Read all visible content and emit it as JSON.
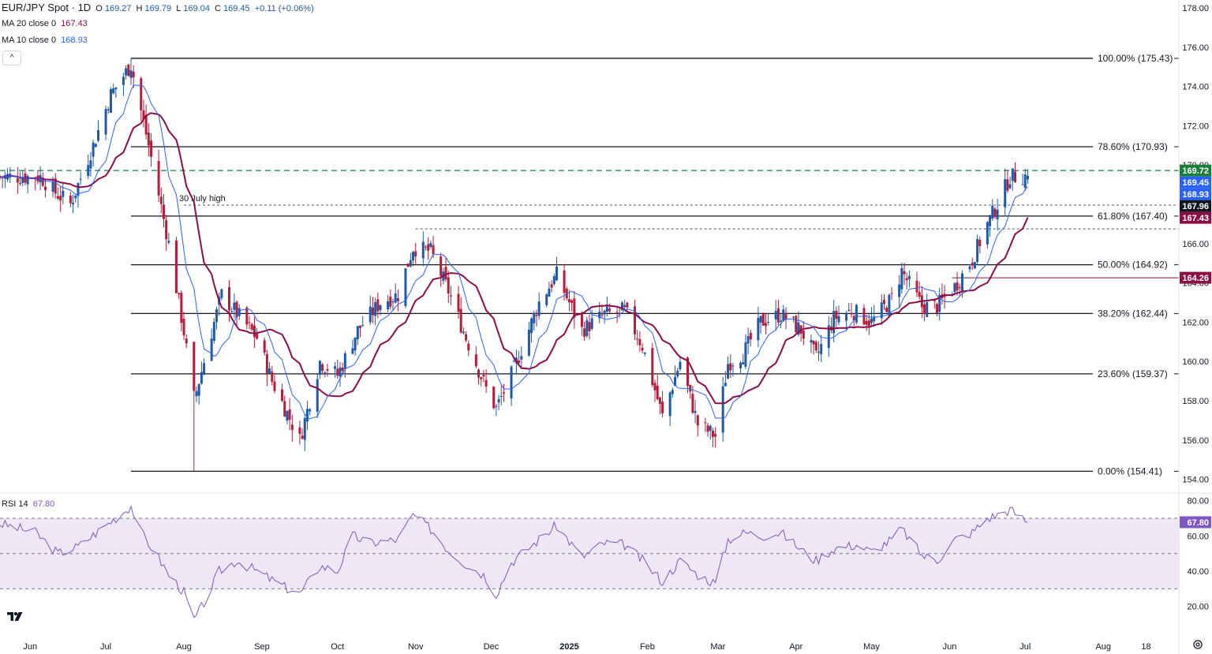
{
  "header": {
    "symbol": "EUR/JPY Spot · 1D",
    "o_label": "O",
    "o": "169.27",
    "h_label": "H",
    "h": "169.79",
    "l_label": "L",
    "l": "169.04",
    "c_label": "C",
    "c": "169.45",
    "change": "+0.11 (+0.06%)",
    "ma20_label": "MA 20 close 0",
    "ma20_value": "167.43",
    "ma10_label": "MA 10 close 0",
    "ma10_value": "168.93",
    "collapse_symbol": "^"
  },
  "colors": {
    "up": "#1e5aa8",
    "down": "#b71c3b",
    "ma20": "#8b0e46",
    "ma10": "#2962ff",
    "rsi": "#7e57c2",
    "rsi_band": "#ede7f6",
    "green_dash": "#1b7f3b",
    "axis_text": "#131722"
  },
  "chart_data": [
    {
      "type": "candlestick",
      "title": "EUR/JPY Spot · 1D",
      "ylim": [
        153.3,
        178.4
      ],
      "y_ticks": [
        154.0,
        156.0,
        158.0,
        160.0,
        162.0,
        164.0,
        166.0,
        168.0,
        170.0,
        172.0,
        174.0,
        176.0,
        178.0
      ],
      "y_tick_labels": [
        "154.00",
        "156.00",
        "158.00",
        "160.00",
        "162.00",
        "164.00",
        "166.00",
        "168.00",
        "170.00",
        "172.00",
        "174.00",
        "176.00",
        "178.00"
      ],
      "x_ticks": [
        "Jun",
        "Jul",
        "Aug",
        "Sep",
        "Oct",
        "Nov",
        "Dec",
        "2025",
        "Feb",
        "Mar",
        "Apr",
        "May",
        "Jun",
        "Jul",
        "Aug",
        "18"
      ],
      "x_tick_dates": [
        "2024-06-01",
        "2024-07-01",
        "2024-08-01",
        "2024-09-01",
        "2024-10-01",
        "2024-11-01",
        "2024-12-01",
        "2025-01-01",
        "2025-02-01",
        "2025-03-01",
        "2025-04-01",
        "2025-05-01",
        "2025-06-01",
        "2025-07-01",
        "2025-08-01",
        "2025-08-18"
      ],
      "x_range": [
        "2024-05-20",
        "2025-08-31"
      ],
      "key_points": [
        {
          "date": "2024-05-20",
          "close": 169.4
        },
        {
          "date": "2024-06-05",
          "close": 169.4
        },
        {
          "date": "2024-06-11",
          "close": 168.6
        },
        {
          "date": "2024-06-17",
          "close": 168.0
        },
        {
          "date": "2024-06-26",
          "close": 171.0
        },
        {
          "date": "2024-07-03",
          "close": 173.6
        },
        {
          "date": "2024-07-11",
          "close": 175.1
        },
        {
          "date": "2024-07-18",
          "close": 171.0
        },
        {
          "date": "2024-07-26",
          "close": 166.0
        },
        {
          "date": "2024-08-01",
          "close": 161.5
        },
        {
          "date": "2024-08-05",
          "close": 158.0
        },
        {
          "date": "2024-08-12",
          "close": 161.5
        },
        {
          "date": "2024-08-16",
          "close": 163.4
        },
        {
          "date": "2024-08-30",
          "close": 161.2
        },
        {
          "date": "2024-09-05",
          "close": 159.0
        },
        {
          "date": "2024-09-16",
          "close": 156.0
        },
        {
          "date": "2024-09-24",
          "close": 160.0
        },
        {
          "date": "2024-10-01",
          "close": 159.3
        },
        {
          "date": "2024-10-09",
          "close": 161.6
        },
        {
          "date": "2024-10-18",
          "close": 163.0
        },
        {
          "date": "2024-10-25",
          "close": 163.4
        },
        {
          "date": "2024-10-31",
          "close": 165.8
        },
        {
          "date": "2024-11-07",
          "close": 165.6
        },
        {
          "date": "2024-11-14",
          "close": 163.6
        },
        {
          "date": "2024-11-21",
          "close": 161.2
        },
        {
          "date": "2024-11-29",
          "close": 158.6
        },
        {
          "date": "2024-12-03",
          "close": 157.6
        },
        {
          "date": "2024-12-10",
          "close": 159.6
        },
        {
          "date": "2024-12-20",
          "close": 163.0
        },
        {
          "date": "2024-12-27",
          "close": 164.4
        },
        {
          "date": "2025-01-06",
          "close": 161.6
        },
        {
          "date": "2025-01-15",
          "close": 162.4
        },
        {
          "date": "2025-01-23",
          "close": 162.6
        },
        {
          "date": "2025-01-30",
          "close": 160.8
        },
        {
          "date": "2025-02-07",
          "close": 157.2
        },
        {
          "date": "2025-02-14",
          "close": 160.0
        },
        {
          "date": "2025-02-21",
          "close": 156.8
        },
        {
          "date": "2025-02-28",
          "close": 156.2
        },
        {
          "date": "2025-03-05",
          "close": 159.9
        },
        {
          "date": "2025-03-11",
          "close": 160.4
        },
        {
          "date": "2025-03-18",
          "close": 162.0
        },
        {
          "date": "2025-03-26",
          "close": 162.4
        },
        {
          "date": "2025-04-03",
          "close": 161.6
        },
        {
          "date": "2025-04-09",
          "close": 160.2
        },
        {
          "date": "2025-04-16",
          "close": 162.2
        },
        {
          "date": "2025-04-23",
          "close": 162.6
        },
        {
          "date": "2025-05-01",
          "close": 162.0
        },
        {
          "date": "2025-05-09",
          "close": 163.2
        },
        {
          "date": "2025-05-13",
          "close": 164.6
        },
        {
          "date": "2025-05-21",
          "close": 162.8
        },
        {
          "date": "2025-05-27",
          "close": 162.8
        },
        {
          "date": "2025-06-03",
          "close": 163.8
        },
        {
          "date": "2025-06-10",
          "close": 165.2
        },
        {
          "date": "2025-06-16",
          "close": 167.0
        },
        {
          "date": "2025-06-20",
          "close": 168.0
        },
        {
          "date": "2025-06-25",
          "close": 169.4
        },
        {
          "date": "2025-07-02",
          "close": 169.45
        }
      ],
      "series": [
        {
          "name": "MA 20 close 0",
          "last": 167.43
        },
        {
          "name": "MA 10 close 0",
          "last": 168.93
        }
      ],
      "fibonacci": [
        {
          "label": "100.00% (175.43)",
          "value": 175.43
        },
        {
          "label": "78.60% (170.93)",
          "value": 170.93
        },
        {
          "label": "61.80% (167.40)",
          "value": 167.4
        },
        {
          "label": "50.00% (164.92)",
          "value": 164.92
        },
        {
          "label": "38.20% (162.44)",
          "value": 162.44
        },
        {
          "label": "23.60% (159.37)",
          "value": 159.37
        },
        {
          "label": "0.00% (154.41)",
          "value": 154.41
        }
      ],
      "fib_start_date": "2024-07-11",
      "horizontal_lines": [
        {
          "value": 169.72,
          "style": "dashed-green"
        },
        {
          "value": 167.96,
          "style": "dotted",
          "start_date": "2024-08-01",
          "label": "30 July high"
        },
        {
          "value": 166.75,
          "style": "dotted",
          "start_date": "2024-11-01"
        },
        {
          "value": 164.26,
          "style": "solid-maroon",
          "start_date": "2025-06-02"
        }
      ],
      "price_labels": [
        {
          "text": "169.72",
          "value": 169.72,
          "color": "#1b7f3b"
        },
        {
          "text": "169.45",
          "value": 169.45,
          "color": "#2962ff"
        },
        {
          "text": "168.93",
          "value": 168.93,
          "color": "#2962ff"
        },
        {
          "text": "167.96",
          "value": 167.96,
          "color": "#131722"
        },
        {
          "text": "167.43",
          "value": 167.43,
          "color": "#8b0e46"
        },
        {
          "text": "164.26",
          "value": 164.26,
          "color": "#8b0e46"
        }
      ]
    },
    {
      "type": "line",
      "title": "RSI 14",
      "value_label": "67.80",
      "last": 67.8,
      "ylim": [
        6,
        83
      ],
      "y_ticks": [
        20,
        40,
        60,
        80
      ],
      "y_tick_labels": [
        "20.00",
        "40.00",
        "60.00",
        "80.00"
      ],
      "band": [
        30,
        70
      ],
      "midline": 50,
      "key_points": [
        {
          "date": "2024-05-20",
          "value": 67
        },
        {
          "date": "2024-06-03",
          "value": 62
        },
        {
          "date": "2024-06-12",
          "value": 50
        },
        {
          "date": "2024-06-20",
          "value": 54
        },
        {
          "date": "2024-07-01",
          "value": 66
        },
        {
          "date": "2024-07-11",
          "value": 77
        },
        {
          "date": "2024-07-15",
          "value": 62
        },
        {
          "date": "2024-07-20",
          "value": 52
        },
        {
          "date": "2024-07-26",
          "value": 38
        },
        {
          "date": "2024-08-01",
          "value": 28
        },
        {
          "date": "2024-08-05",
          "value": 12
        },
        {
          "date": "2024-08-09",
          "value": 22
        },
        {
          "date": "2024-08-15",
          "value": 40
        },
        {
          "date": "2024-08-22",
          "value": 46
        },
        {
          "date": "2024-08-30",
          "value": 40
        },
        {
          "date": "2024-09-10",
          "value": 31
        },
        {
          "date": "2024-09-16",
          "value": 27
        },
        {
          "date": "2024-09-24",
          "value": 43
        },
        {
          "date": "2024-10-01",
          "value": 40
        },
        {
          "date": "2024-10-07",
          "value": 60
        },
        {
          "date": "2024-10-14",
          "value": 56
        },
        {
          "date": "2024-10-25",
          "value": 58
        },
        {
          "date": "2024-10-31",
          "value": 72
        },
        {
          "date": "2024-11-07",
          "value": 64
        },
        {
          "date": "2024-11-14",
          "value": 52
        },
        {
          "date": "2024-11-21",
          "value": 44
        },
        {
          "date": "2024-11-28",
          "value": 38
        },
        {
          "date": "2024-12-03",
          "value": 27
        },
        {
          "date": "2024-12-09",
          "value": 45
        },
        {
          "date": "2024-12-20",
          "value": 58
        },
        {
          "date": "2024-12-27",
          "value": 66
        },
        {
          "date": "2025-01-06",
          "value": 48
        },
        {
          "date": "2025-01-15",
          "value": 56
        },
        {
          "date": "2025-01-23",
          "value": 55
        },
        {
          "date": "2025-01-31",
          "value": 45
        },
        {
          "date": "2025-02-07",
          "value": 34
        },
        {
          "date": "2025-02-14",
          "value": 46
        },
        {
          "date": "2025-02-21",
          "value": 38
        },
        {
          "date": "2025-02-28",
          "value": 33
        },
        {
          "date": "2025-03-05",
          "value": 58
        },
        {
          "date": "2025-03-12",
          "value": 62
        },
        {
          "date": "2025-03-18",
          "value": 60
        },
        {
          "date": "2025-03-26",
          "value": 62
        },
        {
          "date": "2025-04-04",
          "value": 51
        },
        {
          "date": "2025-04-09",
          "value": 46
        },
        {
          "date": "2025-04-16",
          "value": 53
        },
        {
          "date": "2025-04-25",
          "value": 55
        },
        {
          "date": "2025-05-01",
          "value": 51
        },
        {
          "date": "2025-05-09",
          "value": 58
        },
        {
          "date": "2025-05-13",
          "value": 64
        },
        {
          "date": "2025-05-21",
          "value": 49
        },
        {
          "date": "2025-05-27",
          "value": 46
        },
        {
          "date": "2025-06-03",
          "value": 58
        },
        {
          "date": "2025-06-10",
          "value": 62
        },
        {
          "date": "2025-06-16",
          "value": 70
        },
        {
          "date": "2025-06-20",
          "value": 72
        },
        {
          "date": "2025-06-25",
          "value": 75
        },
        {
          "date": "2025-07-02",
          "value": 67.8
        }
      ]
    }
  ]
}
